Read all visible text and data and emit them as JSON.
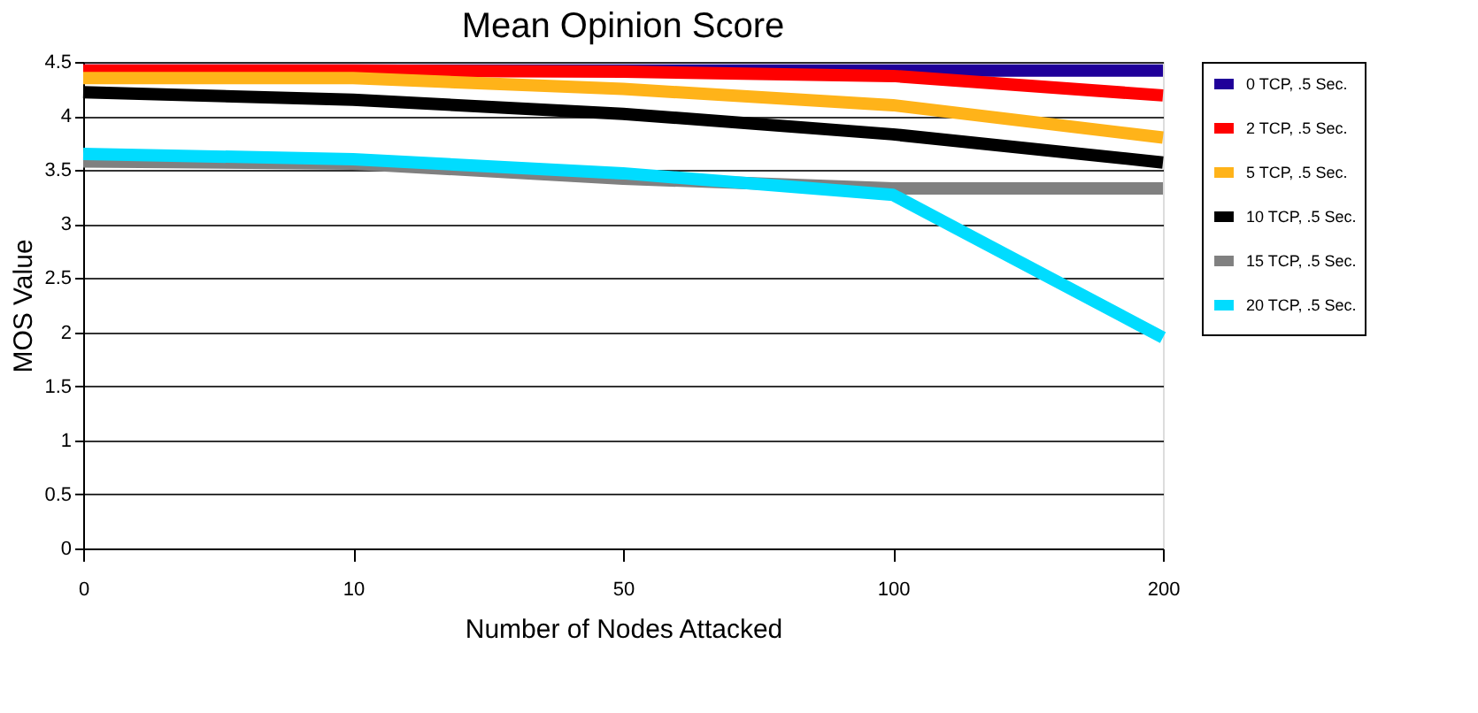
{
  "chart_data": {
    "type": "line",
    "title": "Mean Opinion Score",
    "xlabel": "Number of Nodes Attacked",
    "ylabel": "MOS Value",
    "categories": [
      "0",
      "10",
      "50",
      "100",
      "200"
    ],
    "series": [
      {
        "name": "0 TCP, .5 Sec.",
        "color": "#1f0099",
        "values": [
          4.42,
          4.42,
          4.42,
          4.42,
          4.42
        ]
      },
      {
        "name": "2 TCP, .5 Sec.",
        "color": "#ff0000",
        "values": [
          4.42,
          4.42,
          4.41,
          4.37,
          4.19
        ]
      },
      {
        "name": "5 TCP, .5 Sec.",
        "color": "#ffb319",
        "values": [
          4.35,
          4.35,
          4.25,
          4.1,
          3.8
        ]
      },
      {
        "name": "10 TCP, .5 Sec.",
        "color": "#000000",
        "values": [
          4.22,
          4.15,
          4.02,
          3.83,
          3.57
        ]
      },
      {
        "name": "15 TCP, .5 Sec.",
        "color": "#808080",
        "values": [
          3.58,
          3.56,
          3.42,
          3.33,
          3.33
        ]
      },
      {
        "name": "20 TCP, .5 Sec.",
        "color": "#00dcff",
        "values": [
          3.65,
          3.6,
          3.47,
          3.27,
          1.95
        ]
      }
    ],
    "ylim": [
      0,
      4.5
    ],
    "yticks": [
      0,
      0.5,
      1,
      1.5,
      2,
      2.5,
      3,
      3.5,
      4,
      4.5
    ],
    "grid": "y",
    "legend": "right",
    "marker": "none",
    "line_style": "solid"
  }
}
